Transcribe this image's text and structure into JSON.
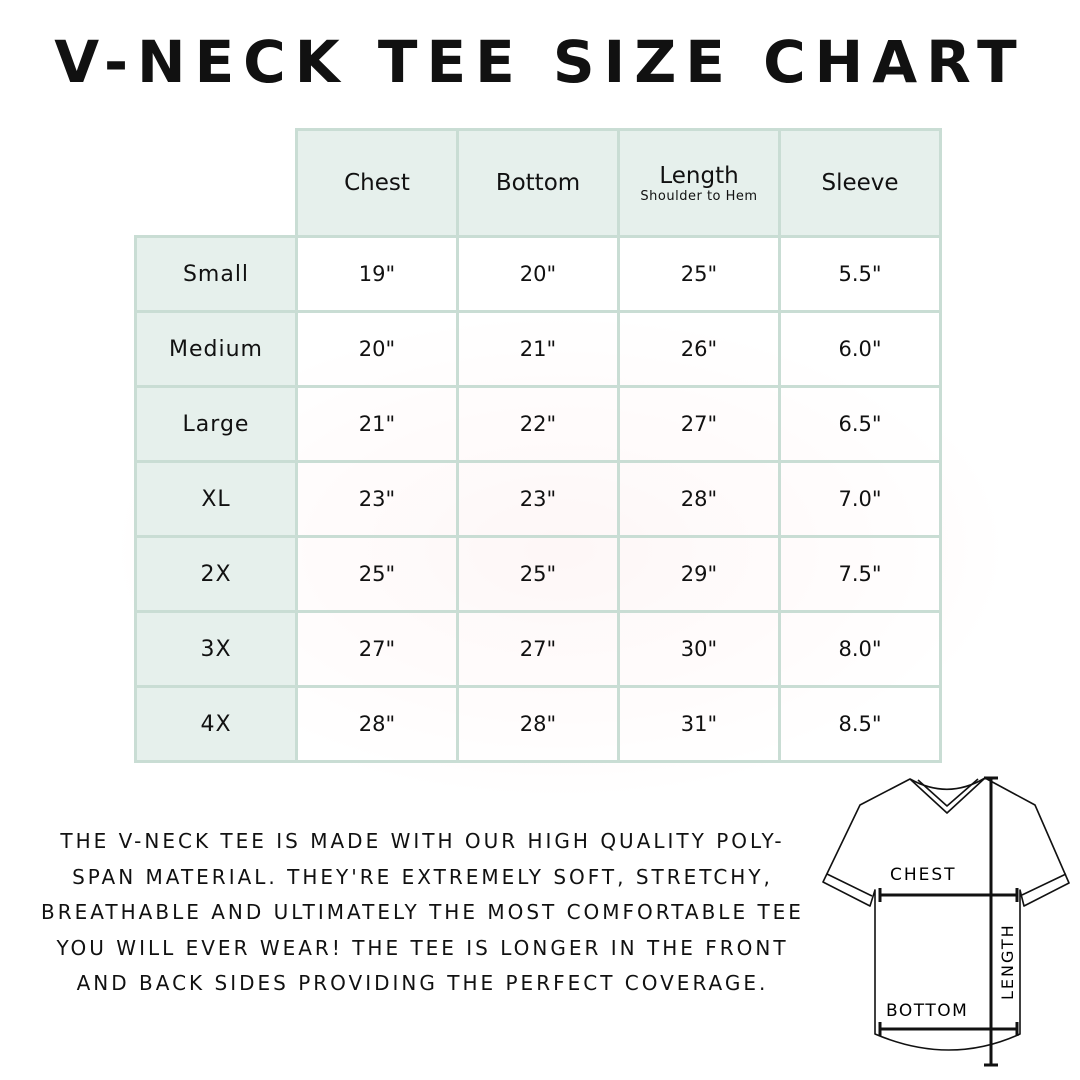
{
  "title": "V-Neck Tee Size Chart",
  "table": {
    "columns": [
      {
        "label": "Chest",
        "sublabel": ""
      },
      {
        "label": "Bottom",
        "sublabel": ""
      },
      {
        "label": "Length",
        "sublabel": "Shoulder to Hem"
      },
      {
        "label": "Sleeve",
        "sublabel": ""
      }
    ],
    "rows": [
      {
        "size": "Small",
        "values": [
          "19\"",
          "20\"",
          "25\"",
          "5.5\""
        ]
      },
      {
        "size": "Medium",
        "values": [
          "20\"",
          "21\"",
          "26\"",
          "6.0\""
        ]
      },
      {
        "size": "Large",
        "values": [
          "21\"",
          "22\"",
          "27\"",
          "6.5\""
        ]
      },
      {
        "size": "XL",
        "values": [
          "23\"",
          "23\"",
          "28\"",
          "7.0\""
        ]
      },
      {
        "size": "2X",
        "values": [
          "25\"",
          "25\"",
          "29\"",
          "7.5\""
        ]
      },
      {
        "size": "3X",
        "values": [
          "27\"",
          "27\"",
          "30\"",
          "8.0\""
        ]
      },
      {
        "size": "4X",
        "values": [
          "28\"",
          "28\"",
          "31\"",
          "8.5\""
        ]
      }
    ]
  },
  "description": "The V-neck tee is made with our high quality poly-span material. They're extremely soft, stretchy, breathable and ultimately the most comfortable tee you will ever wear! The tee is longer in the front and back sides providing the perfect coverage.",
  "diagram": {
    "chest": "CHEST",
    "bottom": "BOTTOM",
    "length": "LENGTH"
  },
  "colors": {
    "header_bg": "#e6f0ec",
    "border": "#c9ddd4"
  }
}
